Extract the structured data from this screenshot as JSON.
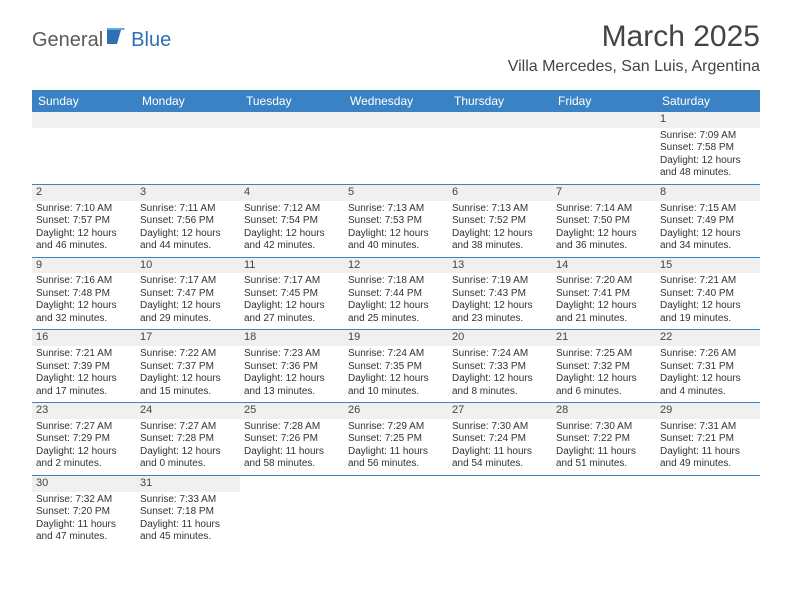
{
  "brand": {
    "part1": "General",
    "part2": "Blue"
  },
  "title": {
    "month": "March 2025",
    "location": "Villa Mercedes, San Luis, Argentina"
  },
  "colors": {
    "header_bg": "#3b82c4",
    "header_text": "#ffffff",
    "num_bg": "#f0f0f0",
    "border": "#3b82c4"
  },
  "days": [
    "Sunday",
    "Monday",
    "Tuesday",
    "Wednesday",
    "Thursday",
    "Friday",
    "Saturday"
  ],
  "weeks": [
    [
      null,
      null,
      null,
      null,
      null,
      null,
      {
        "n": "1",
        "sr": "Sunrise: 7:09 AM",
        "ss": "Sunset: 7:58 PM",
        "dl": "Daylight: 12 hours and 48 minutes."
      }
    ],
    [
      {
        "n": "2",
        "sr": "Sunrise: 7:10 AM",
        "ss": "Sunset: 7:57 PM",
        "dl": "Daylight: 12 hours and 46 minutes."
      },
      {
        "n": "3",
        "sr": "Sunrise: 7:11 AM",
        "ss": "Sunset: 7:56 PM",
        "dl": "Daylight: 12 hours and 44 minutes."
      },
      {
        "n": "4",
        "sr": "Sunrise: 7:12 AM",
        "ss": "Sunset: 7:54 PM",
        "dl": "Daylight: 12 hours and 42 minutes."
      },
      {
        "n": "5",
        "sr": "Sunrise: 7:13 AM",
        "ss": "Sunset: 7:53 PM",
        "dl": "Daylight: 12 hours and 40 minutes."
      },
      {
        "n": "6",
        "sr": "Sunrise: 7:13 AM",
        "ss": "Sunset: 7:52 PM",
        "dl": "Daylight: 12 hours and 38 minutes."
      },
      {
        "n": "7",
        "sr": "Sunrise: 7:14 AM",
        "ss": "Sunset: 7:50 PM",
        "dl": "Daylight: 12 hours and 36 minutes."
      },
      {
        "n": "8",
        "sr": "Sunrise: 7:15 AM",
        "ss": "Sunset: 7:49 PM",
        "dl": "Daylight: 12 hours and 34 minutes."
      }
    ],
    [
      {
        "n": "9",
        "sr": "Sunrise: 7:16 AM",
        "ss": "Sunset: 7:48 PM",
        "dl": "Daylight: 12 hours and 32 minutes."
      },
      {
        "n": "10",
        "sr": "Sunrise: 7:17 AM",
        "ss": "Sunset: 7:47 PM",
        "dl": "Daylight: 12 hours and 29 minutes."
      },
      {
        "n": "11",
        "sr": "Sunrise: 7:17 AM",
        "ss": "Sunset: 7:45 PM",
        "dl": "Daylight: 12 hours and 27 minutes."
      },
      {
        "n": "12",
        "sr": "Sunrise: 7:18 AM",
        "ss": "Sunset: 7:44 PM",
        "dl": "Daylight: 12 hours and 25 minutes."
      },
      {
        "n": "13",
        "sr": "Sunrise: 7:19 AM",
        "ss": "Sunset: 7:43 PM",
        "dl": "Daylight: 12 hours and 23 minutes."
      },
      {
        "n": "14",
        "sr": "Sunrise: 7:20 AM",
        "ss": "Sunset: 7:41 PM",
        "dl": "Daylight: 12 hours and 21 minutes."
      },
      {
        "n": "15",
        "sr": "Sunrise: 7:21 AM",
        "ss": "Sunset: 7:40 PM",
        "dl": "Daylight: 12 hours and 19 minutes."
      }
    ],
    [
      {
        "n": "16",
        "sr": "Sunrise: 7:21 AM",
        "ss": "Sunset: 7:39 PM",
        "dl": "Daylight: 12 hours and 17 minutes."
      },
      {
        "n": "17",
        "sr": "Sunrise: 7:22 AM",
        "ss": "Sunset: 7:37 PM",
        "dl": "Daylight: 12 hours and 15 minutes."
      },
      {
        "n": "18",
        "sr": "Sunrise: 7:23 AM",
        "ss": "Sunset: 7:36 PM",
        "dl": "Daylight: 12 hours and 13 minutes."
      },
      {
        "n": "19",
        "sr": "Sunrise: 7:24 AM",
        "ss": "Sunset: 7:35 PM",
        "dl": "Daylight: 12 hours and 10 minutes."
      },
      {
        "n": "20",
        "sr": "Sunrise: 7:24 AM",
        "ss": "Sunset: 7:33 PM",
        "dl": "Daylight: 12 hours and 8 minutes."
      },
      {
        "n": "21",
        "sr": "Sunrise: 7:25 AM",
        "ss": "Sunset: 7:32 PM",
        "dl": "Daylight: 12 hours and 6 minutes."
      },
      {
        "n": "22",
        "sr": "Sunrise: 7:26 AM",
        "ss": "Sunset: 7:31 PM",
        "dl": "Daylight: 12 hours and 4 minutes."
      }
    ],
    [
      {
        "n": "23",
        "sr": "Sunrise: 7:27 AM",
        "ss": "Sunset: 7:29 PM",
        "dl": "Daylight: 12 hours and 2 minutes."
      },
      {
        "n": "24",
        "sr": "Sunrise: 7:27 AM",
        "ss": "Sunset: 7:28 PM",
        "dl": "Daylight: 12 hours and 0 minutes."
      },
      {
        "n": "25",
        "sr": "Sunrise: 7:28 AM",
        "ss": "Sunset: 7:26 PM",
        "dl": "Daylight: 11 hours and 58 minutes."
      },
      {
        "n": "26",
        "sr": "Sunrise: 7:29 AM",
        "ss": "Sunset: 7:25 PM",
        "dl": "Daylight: 11 hours and 56 minutes."
      },
      {
        "n": "27",
        "sr": "Sunrise: 7:30 AM",
        "ss": "Sunset: 7:24 PM",
        "dl": "Daylight: 11 hours and 54 minutes."
      },
      {
        "n": "28",
        "sr": "Sunrise: 7:30 AM",
        "ss": "Sunset: 7:22 PM",
        "dl": "Daylight: 11 hours and 51 minutes."
      },
      {
        "n": "29",
        "sr": "Sunrise: 7:31 AM",
        "ss": "Sunset: 7:21 PM",
        "dl": "Daylight: 11 hours and 49 minutes."
      }
    ],
    [
      {
        "n": "30",
        "sr": "Sunrise: 7:32 AM",
        "ss": "Sunset: 7:20 PM",
        "dl": "Daylight: 11 hours and 47 minutes."
      },
      {
        "n": "31",
        "sr": "Sunrise: 7:33 AM",
        "ss": "Sunset: 7:18 PM",
        "dl": "Daylight: 11 hours and 45 minutes."
      },
      null,
      null,
      null,
      null,
      null
    ]
  ]
}
